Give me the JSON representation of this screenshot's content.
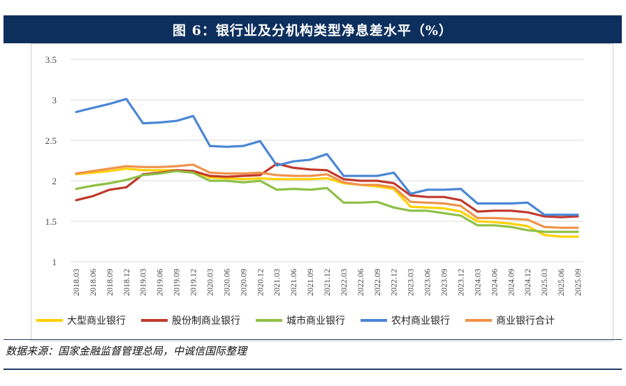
{
  "title": "图 6：银行业及分机构类型净息差水平（%）",
  "source": "数据来源：国家金融监督管理总局，中诚信国际整理",
  "chart_data": {
    "type": "line",
    "title": "图 6：银行业及分机构类型净息差水平（%）",
    "xlabel": "",
    "ylabel": "",
    "ylim": [
      1,
      3.5
    ],
    "yticks": [
      "1",
      "1.5",
      "2",
      "2.5",
      "3",
      "3.5"
    ],
    "grid": "horizontal",
    "legend": "bottom",
    "categories": [
      "2018.03",
      "2018.06",
      "2018.09",
      "2018.12",
      "2019.03",
      "2019.06",
      "2019.09",
      "2019.12",
      "2020.03",
      "2020.06",
      "2020.09",
      "2020.12",
      "2021.03",
      "2021.06",
      "2021.09",
      "2021.12",
      "2022.03",
      "2022.06",
      "2022.09",
      "2022.12",
      "2023.03",
      "2023.06",
      "2023.09",
      "2023.12",
      "2024.03",
      "2024.06",
      "2024.09",
      "2024.12",
      "2025.03",
      "2025.06",
      "2025.09"
    ],
    "series": [
      {
        "name": "大型商业银行",
        "color": "#ffd000",
        "values": [
          2.08,
          2.1,
          2.12,
          2.15,
          2.13,
          2.13,
          2.13,
          2.12,
          2.04,
          2.03,
          2.02,
          2.03,
          2.02,
          2.02,
          2.02,
          2.03,
          1.97,
          1.95,
          1.93,
          1.9,
          1.68,
          1.67,
          1.66,
          1.62,
          1.5,
          1.49,
          1.47,
          1.44,
          1.33,
          1.31,
          1.31
        ]
      },
      {
        "name": "股份制商业银行",
        "color": "#c0392b",
        "values": [
          1.76,
          1.81,
          1.89,
          1.92,
          2.08,
          2.1,
          2.13,
          2.12,
          2.06,
          2.05,
          2.06,
          2.07,
          2.21,
          2.16,
          2.14,
          2.13,
          2.02,
          2.0,
          2.0,
          1.97,
          1.82,
          1.8,
          1.8,
          1.76,
          1.62,
          1.63,
          1.63,
          1.61,
          1.56,
          1.55,
          1.56
        ]
      },
      {
        "name": "城市商业银行",
        "color": "#8fbf45",
        "values": [
          1.9,
          1.94,
          1.97,
          2.01,
          2.07,
          2.09,
          2.12,
          2.1,
          2.0,
          2.0,
          1.98,
          2.0,
          1.89,
          1.9,
          1.89,
          1.91,
          1.73,
          1.73,
          1.74,
          1.67,
          1.63,
          1.63,
          1.6,
          1.57,
          1.45,
          1.45,
          1.43,
          1.39,
          1.37,
          1.37,
          1.37
        ]
      },
      {
        "name": "农村商业银行",
        "color": "#4a86d4",
        "values": [
          2.85,
          2.9,
          2.95,
          3.01,
          2.71,
          2.72,
          2.74,
          2.8,
          2.43,
          2.42,
          2.43,
          2.49,
          2.19,
          2.24,
          2.26,
          2.33,
          2.06,
          2.06,
          2.06,
          2.1,
          1.84,
          1.89,
          1.89,
          1.9,
          1.72,
          1.72,
          1.72,
          1.73,
          1.58,
          1.58,
          1.58
        ]
      },
      {
        "name": "商业银行合计",
        "color": "#f0924a",
        "values": [
          2.09,
          2.12,
          2.15,
          2.18,
          2.17,
          2.17,
          2.18,
          2.2,
          2.1,
          2.09,
          2.09,
          2.1,
          2.07,
          2.06,
          2.06,
          2.08,
          1.98,
          1.95,
          1.95,
          1.92,
          1.74,
          1.73,
          1.72,
          1.69,
          1.54,
          1.54,
          1.53,
          1.52,
          1.43,
          1.42,
          1.42
        ]
      }
    ]
  }
}
